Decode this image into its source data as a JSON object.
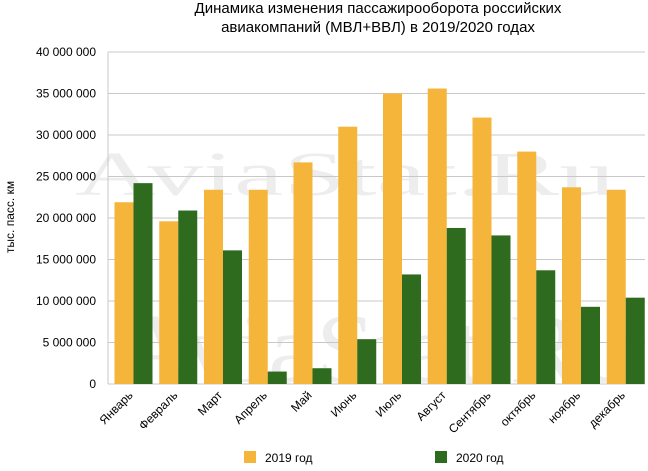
{
  "chart_data": {
    "type": "bar",
    "title": "Динамика изменения пассажирооборота российских авиакомпаний (МВЛ+ВВЛ) в 2019/2020 годах",
    "title_lines": [
      "Динамика изменения пассажирооборота российских",
      "авиакомпаний (МВЛ+ВВЛ) в 2019/2020 годах"
    ],
    "ylabel": "тыс. пасс. км",
    "xlabel": "",
    "ylim": [
      0,
      40000000
    ],
    "yticks": [
      0,
      5000000,
      10000000,
      15000000,
      20000000,
      25000000,
      30000000,
      35000000,
      40000000
    ],
    "ytick_labels": [
      "0",
      "5 000 000",
      "10 000 000",
      "15 000 000",
      "20 000 000",
      "25 000 000",
      "30 000 000",
      "35 000 000",
      "40 000 000"
    ],
    "grid": true,
    "legend_position": "bottom",
    "categories": [
      "Январь",
      "Февраль",
      "Март",
      "Апрель",
      "Май",
      "Июнь",
      "Июль",
      "Август",
      "Сентябрь",
      "октябрь",
      "ноябрь",
      "декабрь"
    ],
    "series": [
      {
        "name": "2019 год",
        "color": "#F5B53A",
        "values": [
          21900000,
          19600000,
          23400000,
          23400000,
          26700000,
          31000000,
          35000000,
          35600000,
          32100000,
          28000000,
          23700000,
          23400000
        ]
      },
      {
        "name": "2020 год",
        "color": "#2E6B1E",
        "values": [
          24200000,
          20900000,
          16100000,
          1500000,
          1900000,
          5400000,
          13200000,
          18800000,
          17900000,
          13700000,
          9300000,
          10400000
        ]
      }
    ],
    "watermark": "AviaStat.Ru"
  }
}
